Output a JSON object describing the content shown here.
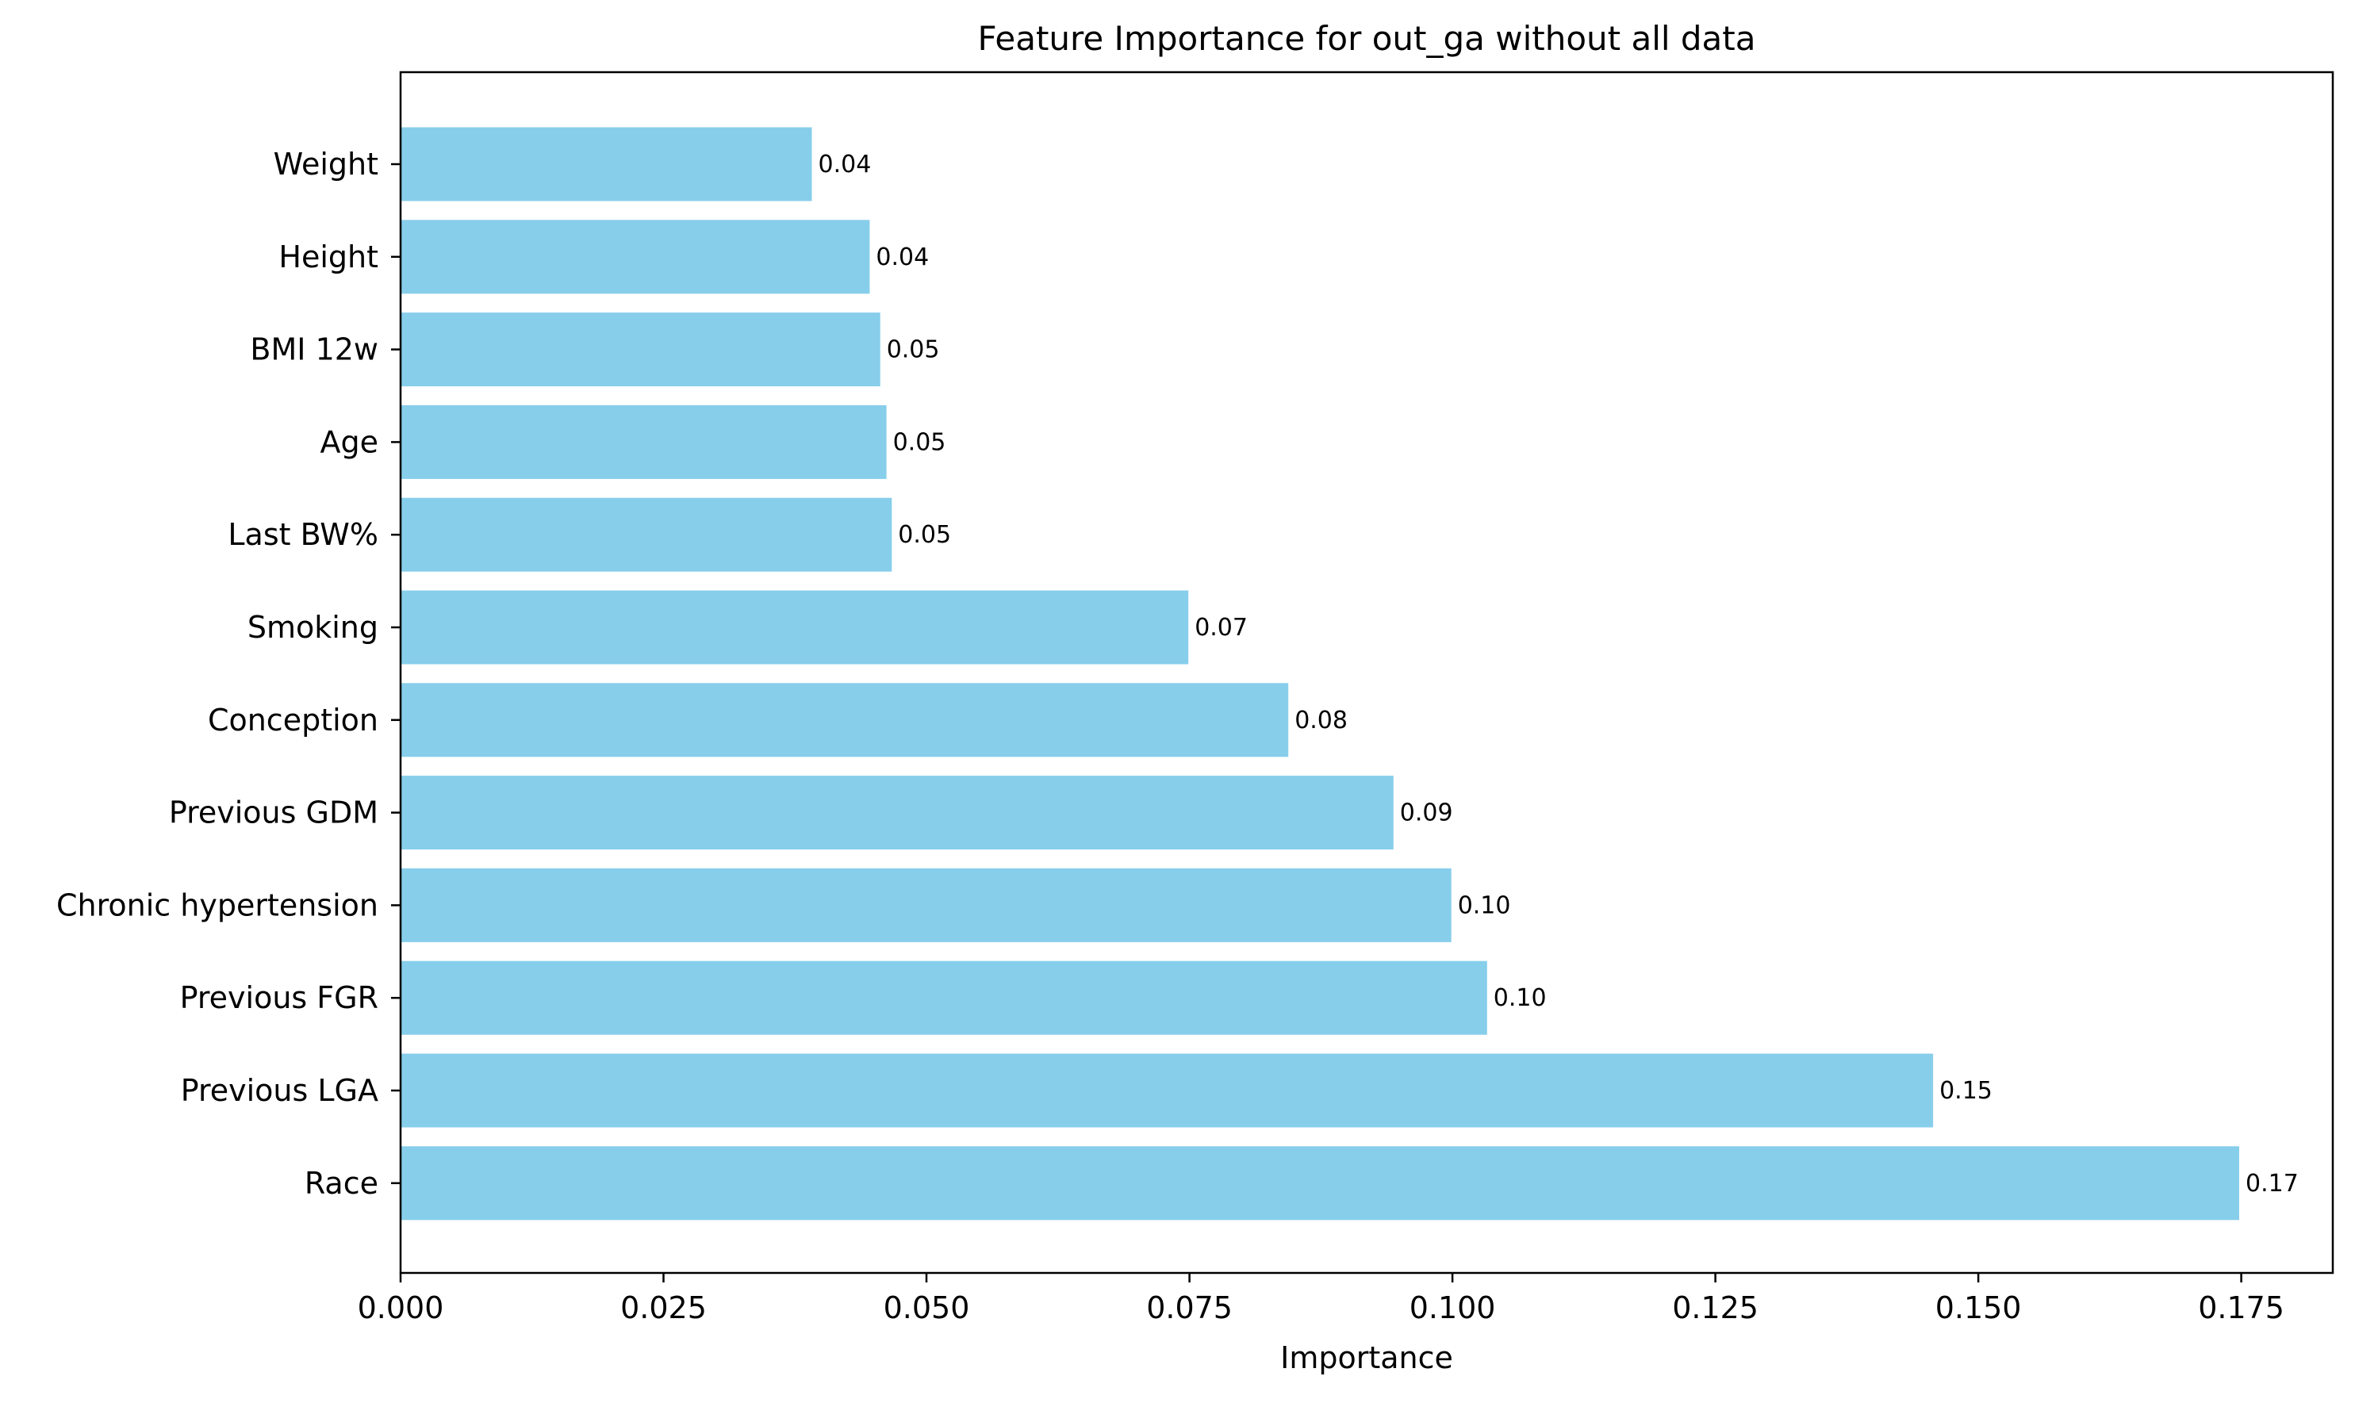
{
  "chart_data": {
    "type": "bar",
    "orientation": "horizontal",
    "title": "Feature Importance for out_ga without all data",
    "xlabel": "Importance",
    "ylabel": "",
    "xlim": [
      0.0,
      0.1837
    ],
    "xticks": [
      0.0,
      0.025,
      0.05,
      0.075,
      0.1,
      0.125,
      0.15,
      0.175
    ],
    "xtick_labels": [
      "0.000",
      "0.025",
      "0.050",
      "0.075",
      "0.100",
      "0.125",
      "0.150",
      "0.175"
    ],
    "grid": false,
    "legend": "none",
    "bar_color": "#87CEEB",
    "categories": [
      "Weight",
      "Height",
      "BMI 12w",
      "Age",
      "Last BW%",
      "Smoking",
      "Conception",
      "Previous GDM",
      "Chronic hypertension",
      "Previous FGR",
      "Previous LGA",
      "Race"
    ],
    "values": [
      0.0391,
      0.0446,
      0.0456,
      0.0462,
      0.0467,
      0.0749,
      0.0844,
      0.0944,
      0.0999,
      0.1033,
      0.1457,
      0.1748
    ],
    "data_labels": [
      "0.04",
      "0.04",
      "0.05",
      "0.05",
      "0.05",
      "0.07",
      "0.08",
      "0.09",
      "0.10",
      "0.10",
      "0.15",
      "0.17"
    ]
  }
}
